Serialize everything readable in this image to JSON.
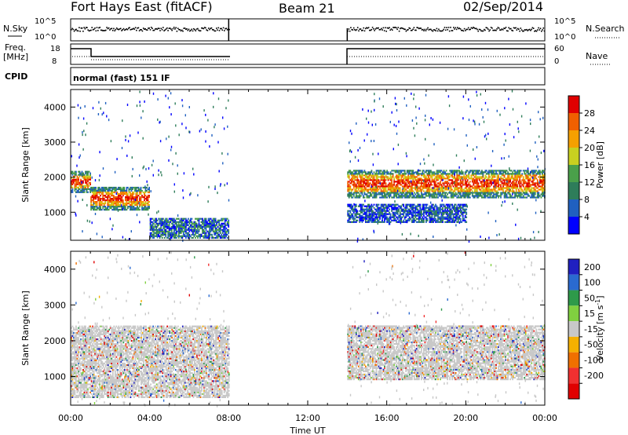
{
  "header": {
    "title_left": "Fort Hays East (fitACF)",
    "title_center": "Beam 21",
    "title_right": "02/Sep/2014"
  },
  "noise_panel": {
    "left_label": "N.Sky",
    "right_label": "N.Search",
    "ticks": [
      "10^5",
      "10^0"
    ]
  },
  "freq_panel": {
    "left_label": "Freq.",
    "left_unit": "[MHz]",
    "left_ticks": [
      "18",
      "8"
    ],
    "right_label": "Nave",
    "right_ticks": [
      "60",
      "0"
    ]
  },
  "cpid_panel": {
    "left_label": "CPID",
    "text": "normal (fast) 151 IF"
  },
  "chart_data": [
    {
      "type": "heatmap",
      "name": "power",
      "xlabel": "",
      "ylabel": "Slant Range [km]",
      "xlim": [
        0,
        24
      ],
      "ylim": [
        200,
        4500
      ],
      "y_ticks": [
        "1000",
        "2000",
        "3000",
        "4000"
      ],
      "colorbar": {
        "label": "Power [dB]",
        "ticks": [
          "4",
          "8",
          "12",
          "16",
          "20",
          "24",
          "28"
        ],
        "colors": [
          "#0000ff",
          "#2060c0",
          "#2e7d5a",
          "#4aa04a",
          "#c8d020",
          "#f5a000",
          "#f06000",
          "#e00000"
        ]
      },
      "data_gap_hours": [
        8,
        14
      ],
      "regions": [
        {
          "t0": 0,
          "t1": 1,
          "r0": 1550,
          "r1": 2150,
          "level": "high"
        },
        {
          "t0": 1,
          "t1": 4,
          "r0": 1050,
          "r1": 1700,
          "level": "high"
        },
        {
          "t0": 4,
          "t1": 8,
          "r0": 250,
          "r1": 800,
          "level": "medium"
        },
        {
          "t0": 14,
          "t1": 24,
          "r0": 1400,
          "r1": 2200,
          "level": "high"
        },
        {
          "t0": 14,
          "t1": 20,
          "r0": 700,
          "r1": 1200,
          "level": "low"
        }
      ]
    },
    {
      "type": "heatmap",
      "name": "velocity",
      "xlabel": "Time UT",
      "ylabel": "Slant Range [km]",
      "xlim": [
        0,
        24
      ],
      "ylim": [
        200,
        4500
      ],
      "x_ticks": [
        "00:00",
        "04:00",
        "08:00",
        "12:00",
        "16:00",
        "20:00",
        "00:00"
      ],
      "y_ticks": [
        "1000",
        "2000",
        "3000",
        "4000"
      ],
      "colorbar": {
        "label": "Velocity [m s-1]",
        "label_main": "Velocity [m s",
        "label_sup": "-1",
        "label_tail": "]",
        "ticks": [
          "200",
          "100",
          "50",
          "15",
          "-15",
          "-50",
          "-100",
          "-200"
        ],
        "colors": [
          "#2020c0",
          "#2a6ad0",
          "#2e9a4a",
          "#80d040",
          "#c8c8c8",
          "#f5b000",
          "#f07000",
          "#f03030",
          "#e00000"
        ]
      },
      "data_gap_hours": [
        8,
        14
      ],
      "regions": [
        {
          "t0": 0,
          "t1": 8,
          "r0": 400,
          "r1": 2400,
          "level": "ground-scatter"
        },
        {
          "t0": 14,
          "t1": 24,
          "r0": 900,
          "r1": 2400,
          "level": "ground-scatter"
        }
      ]
    }
  ]
}
